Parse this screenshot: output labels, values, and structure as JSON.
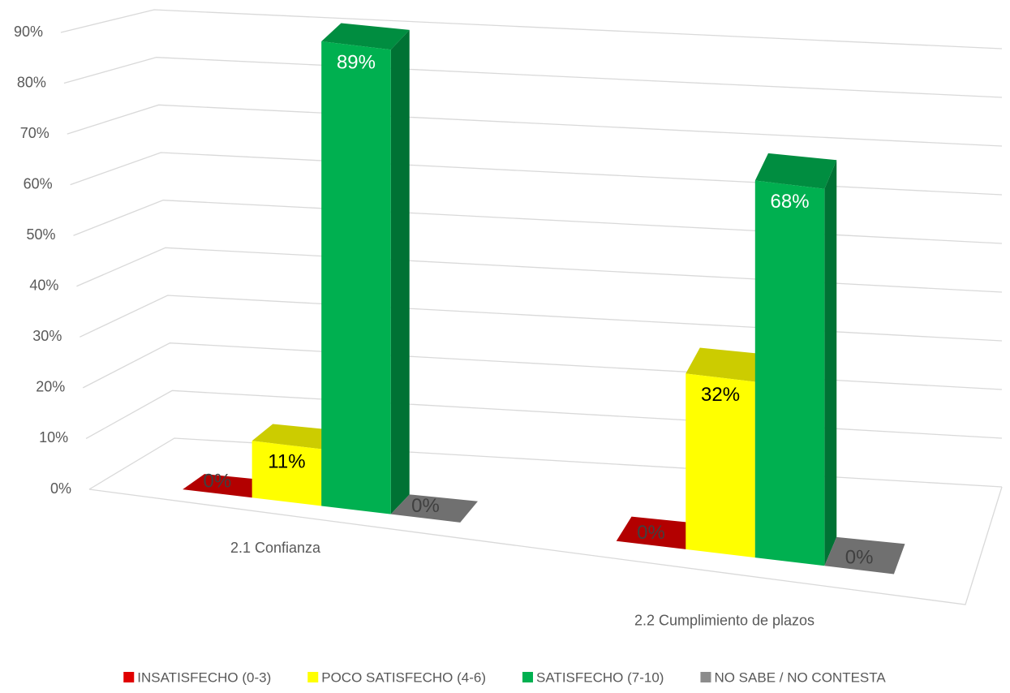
{
  "chart_data": {
    "type": "bar3d",
    "categories": [
      "2.1 Confianza",
      "2.2 Cumplimiento de plazos"
    ],
    "series": [
      {
        "name": "INSATISFECHO (0-3)",
        "color": "#e00000",
        "label_color": "#404040",
        "values": [
          0,
          0
        ],
        "value_labels": [
          "0%",
          "0%"
        ]
      },
      {
        "name": "POCO SATISFECHO  (4-6)",
        "color": "#ffff00",
        "label_color": "#000000",
        "values": [
          11,
          32
        ],
        "value_labels": [
          "11%",
          "32%"
        ]
      },
      {
        "name": "SATISFECHO  (7-10)",
        "color": "#00b050",
        "label_color": "#ffffff",
        "values": [
          89,
          68
        ],
        "value_labels": [
          "89%",
          "68%"
        ]
      },
      {
        "name": "NO SABE / NO CONTESTA",
        "color": "#8c8c8c",
        "label_color": "#404040",
        "values": [
          0,
          0
        ],
        "value_labels": [
          "0%",
          "0%"
        ]
      }
    ],
    "ylim": [
      0,
      90
    ],
    "yticks": [
      {
        "value": 0,
        "label": "0%"
      },
      {
        "value": 10,
        "label": "10%"
      },
      {
        "value": 20,
        "label": "20%"
      },
      {
        "value": 30,
        "label": "30%"
      },
      {
        "value": 40,
        "label": "40%"
      },
      {
        "value": 50,
        "label": "50%"
      },
      {
        "value": 60,
        "label": "60%"
      },
      {
        "value": 70,
        "label": "70%"
      },
      {
        "value": 80,
        "label": "80%"
      },
      {
        "value": 90,
        "label": "90%"
      }
    ],
    "grid": true,
    "legend": "bottom"
  }
}
